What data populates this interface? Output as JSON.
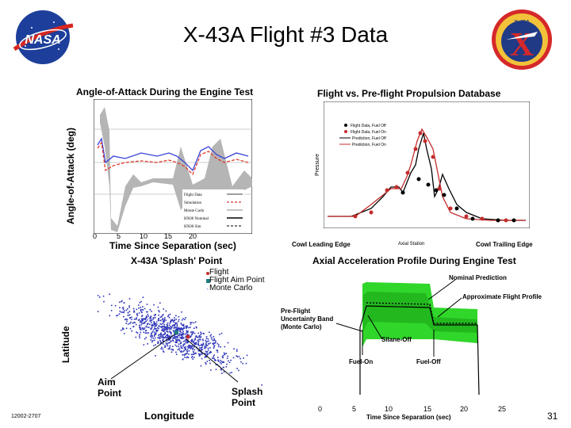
{
  "slide": {
    "title": "X-43A Flight #3 Data",
    "footer_id": "12002-2707",
    "page_number": "31"
  },
  "logos": {
    "nasa_text": "NASA",
    "x43_top_text": "X-43A",
    "x43_letter": "X"
  },
  "aoa": {
    "title": "Angle-of-Attack During the Engine Test",
    "ylabel": "Angle-of-Attack (deg)",
    "xlabel": "Time Since Separation (sec)",
    "xticks": [
      "0",
      "5",
      "10",
      "15",
      "20"
    ],
    "legend": [
      "Flight Data",
      "Simulation",
      "Monte Carlo",
      "HX00 Nominal",
      "HX00 Sim"
    ]
  },
  "propulsion": {
    "title": "Flight vs. Pre-flight Propulsion Database",
    "ylabel": "Pressure",
    "xlabel": "Axial Station",
    "left_label": "Cowl Leading Edge",
    "right_label": "Cowl Trailing Edge",
    "legend": [
      "Flight Data, Fuel Off",
      "Flight Data, Fuel On",
      "Prediction, Fuel Off",
      "Prediction, Fuel On"
    ]
  },
  "splash": {
    "title": "X-43A 'Splash' Point",
    "ylabel": "Latitude",
    "xlabel": "Longitude",
    "legend": [
      "Flight",
      "Flight Aim Point",
      "Monte Carlo"
    ],
    "aim_label_1": "Aim",
    "aim_label_2": "Point",
    "splash_label_1": "Splash",
    "splash_label_2": "Point"
  },
  "accel": {
    "title": "Axial Acceleration Profile During Engine Test",
    "xlabel": "Time Since Separation (sec)",
    "xticks": [
      "0",
      "5",
      "10",
      "15",
      "20",
      "25"
    ],
    "nominal": "Nominal Prediction",
    "approx": "Approximate Flight Profile",
    "band_1": "Pre-Flight",
    "band_2": "Uncertainty Band",
    "band_3": "(Monte Carlo)",
    "silane_off": "Silane-Off",
    "fuel_on": "Fuel-On",
    "fuel_off": "Fuel-Off"
  }
}
